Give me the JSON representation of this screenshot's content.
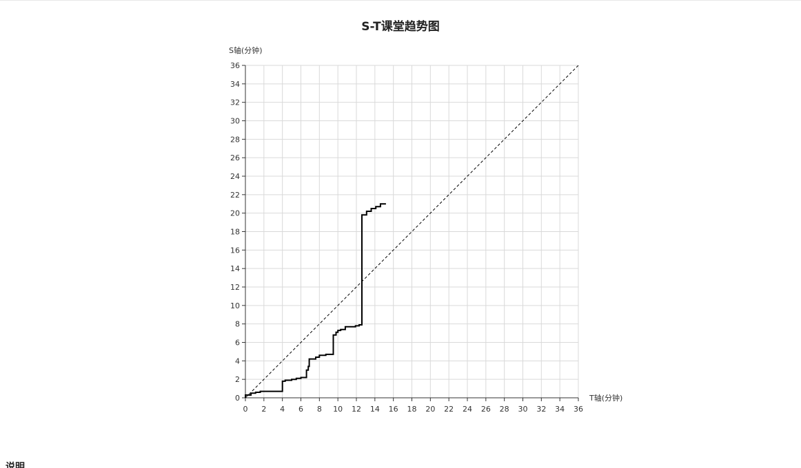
{
  "chart_data": {
    "type": "line",
    "title": "S-T课堂趋势图",
    "xlabel": "T轴(分钟)",
    "ylabel": "S轴(分钟)",
    "xlim": [
      0,
      36
    ],
    "ylim": [
      0,
      36
    ],
    "xticks": [
      0,
      2,
      4,
      6,
      8,
      10,
      12,
      14,
      16,
      18,
      20,
      22,
      24,
      26,
      28,
      30,
      32,
      34,
      36
    ],
    "yticks": [
      0,
      2,
      4,
      6,
      8,
      10,
      12,
      14,
      16,
      18,
      20,
      22,
      24,
      26,
      28,
      30,
      32,
      34,
      36
    ],
    "grid": true,
    "series": [
      {
        "style": "solid",
        "color": "#000000",
        "points": [
          [
            0,
            0
          ],
          [
            0,
            0.3
          ],
          [
            0.6,
            0.3
          ],
          [
            0.6,
            0.5
          ],
          [
            1.1,
            0.5
          ],
          [
            1.1,
            0.6
          ],
          [
            1.6,
            0.6
          ],
          [
            1.6,
            0.7
          ],
          [
            4.0,
            0.7
          ],
          [
            4.0,
            1.8
          ],
          [
            4.3,
            1.8
          ],
          [
            4.3,
            1.9
          ],
          [
            5.0,
            1.9
          ],
          [
            5.0,
            2.0
          ],
          [
            5.5,
            2.0
          ],
          [
            5.5,
            2.1
          ],
          [
            6.0,
            2.1
          ],
          [
            6.0,
            2.2
          ],
          [
            6.6,
            2.2
          ],
          [
            6.6,
            3.0
          ],
          [
            6.8,
            3.0
          ],
          [
            6.8,
            3.4
          ],
          [
            6.9,
            3.4
          ],
          [
            6.9,
            4.2
          ],
          [
            7.6,
            4.2
          ],
          [
            7.6,
            4.4
          ],
          [
            8.0,
            4.4
          ],
          [
            8.0,
            4.6
          ],
          [
            8.7,
            4.6
          ],
          [
            8.7,
            4.7
          ],
          [
            9.5,
            4.7
          ],
          [
            9.5,
            6.8
          ],
          [
            9.8,
            6.8
          ],
          [
            9.8,
            7.1
          ],
          [
            10.0,
            7.1
          ],
          [
            10.0,
            7.3
          ],
          [
            10.3,
            7.3
          ],
          [
            10.3,
            7.4
          ],
          [
            10.8,
            7.4
          ],
          [
            10.8,
            7.7
          ],
          [
            11.9,
            7.7
          ],
          [
            11.9,
            7.8
          ],
          [
            12.3,
            7.8
          ],
          [
            12.3,
            7.9
          ],
          [
            12.6,
            7.9
          ],
          [
            12.6,
            19.8
          ],
          [
            13.1,
            19.8
          ],
          [
            13.1,
            20.2
          ],
          [
            13.6,
            20.2
          ],
          [
            13.6,
            20.5
          ],
          [
            14.1,
            20.5
          ],
          [
            14.1,
            20.7
          ],
          [
            14.6,
            20.7
          ],
          [
            14.6,
            21.0
          ],
          [
            15.2,
            21.0
          ]
        ]
      },
      {
        "style": "dashed",
        "color": "#000000",
        "points": [
          [
            0,
            0
          ],
          [
            36,
            36
          ]
        ]
      }
    ]
  },
  "section": {
    "heading": "说明"
  }
}
